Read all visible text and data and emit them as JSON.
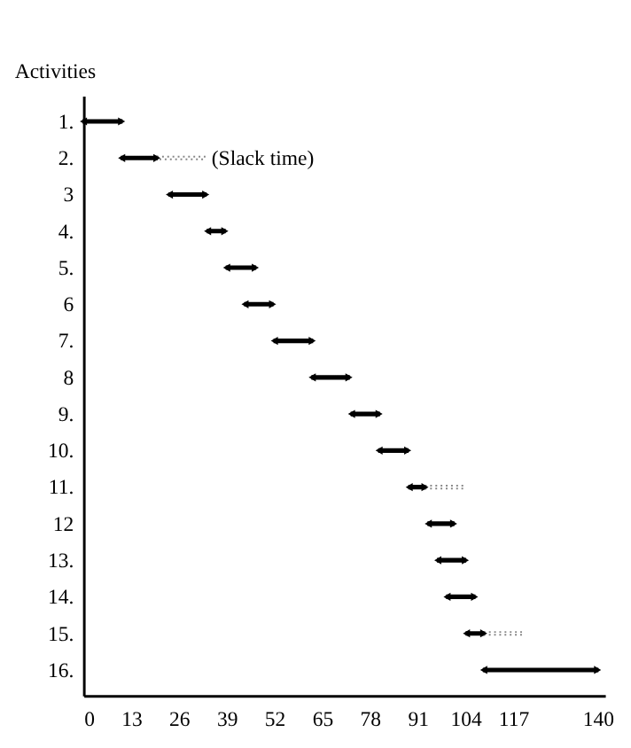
{
  "chart_data": {
    "type": "bar",
    "orientation": "horizontal",
    "ylabel": "Activities",
    "categories": [
      "1.",
      "2.",
      "3",
      "4.",
      "5.",
      "6",
      "7.",
      "8",
      "9.",
      "10.",
      "11.",
      "12",
      "13.",
      "14.",
      "15.",
      "16."
    ],
    "series": [
      {
        "color": "#000000",
        "line_style": "solid",
        "marker": "triangle",
        "base": [
          0,
          10.4,
          23.4,
          33.8,
          39,
          44,
          52,
          62.3,
          73,
          80.5,
          88.7,
          93.9,
          96.5,
          99,
          104.3,
          109
        ],
        "values": [
          10.4,
          9.6,
          9.9,
          4.7,
          7.8,
          7.5,
          10.3,
          10,
          7.5,
          7.8,
          4.3,
          6.9,
          7.5,
          7.5,
          4.7,
          31
        ]
      },
      {
        "color": "#888888",
        "line_style": "dotted",
        "marker": "none",
        "base": [
          null,
          20,
          null,
          null,
          null,
          null,
          null,
          null,
          null,
          null,
          93,
          null,
          null,
          null,
          109,
          null
        ],
        "values": [
          null,
          13,
          null,
          null,
          null,
          null,
          null,
          null,
          null,
          null,
          10.5,
          null,
          null,
          null,
          10.5,
          null
        ]
      }
    ],
    "annotations": [
      "(Slack time)"
    ],
    "xlim": [
      0,
      142
    ],
    "xticks": [
      0,
      13,
      26,
      39,
      52,
      65,
      78,
      91,
      104,
      117,
      140
    ],
    "grid": false
  }
}
